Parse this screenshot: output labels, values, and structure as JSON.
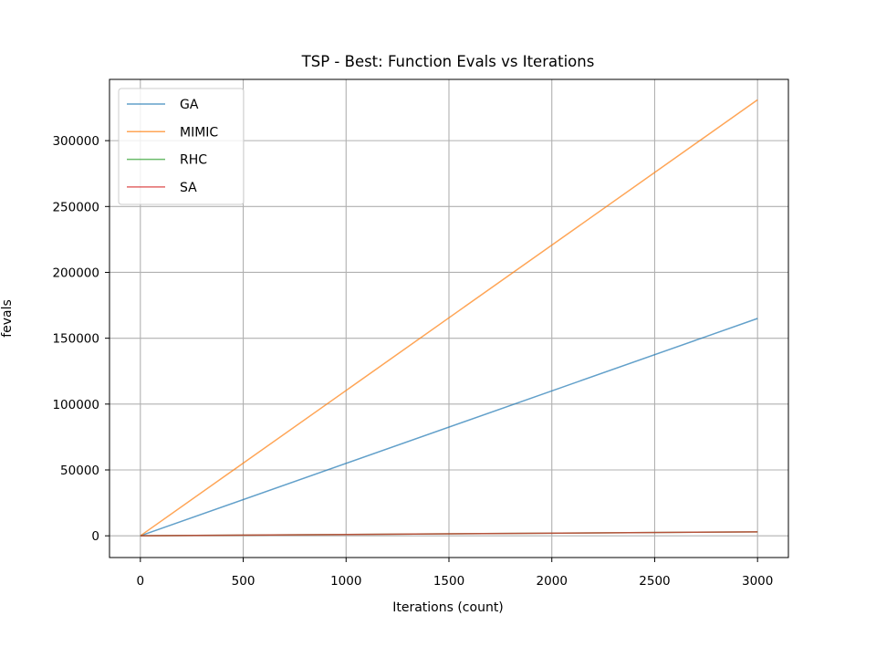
{
  "chart_data": {
    "type": "line",
    "title": "TSP - Best: Function Evals vs Iterations",
    "xlabel": "Iterations (count)",
    "ylabel": "fevals",
    "xlim": [
      -150,
      3150
    ],
    "ylim": [
      -16500,
      346500
    ],
    "xticks": [
      0,
      500,
      1000,
      1500,
      2000,
      2500,
      3000
    ],
    "yticks": [
      0,
      50000,
      100000,
      150000,
      200000,
      250000,
      300000
    ],
    "grid": true,
    "legend_position": "upper-left",
    "series": [
      {
        "name": "GA",
        "color": "#1f77b4",
        "x": [
          0,
          3000
        ],
        "y": [
          0,
          165000
        ]
      },
      {
        "name": "MIMIC",
        "color": "#ff7f0e",
        "x": [
          0,
          3000
        ],
        "y": [
          0,
          331000
        ]
      },
      {
        "name": "RHC",
        "color": "#2ca02c",
        "x": [
          0,
          3000
        ],
        "y": [
          0,
          3000
        ]
      },
      {
        "name": "SA",
        "color": "#d62728",
        "x": [
          0,
          3000
        ],
        "y": [
          0,
          3000
        ]
      }
    ]
  }
}
